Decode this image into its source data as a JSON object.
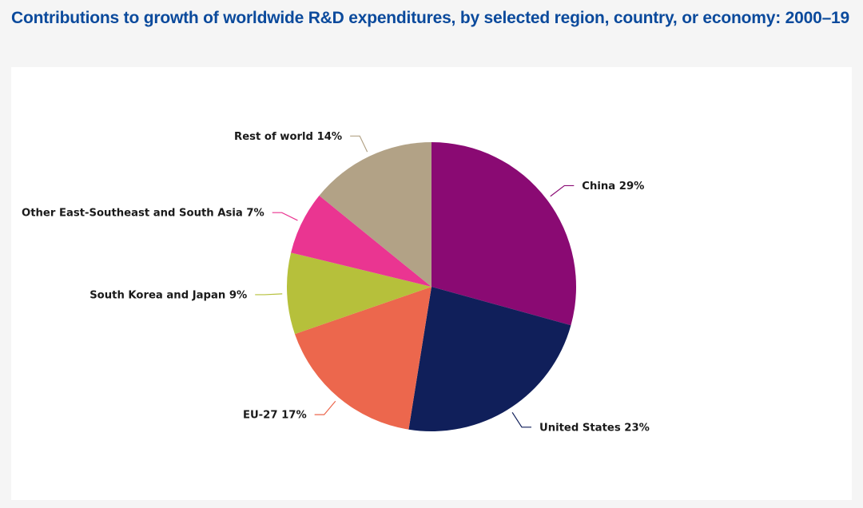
{
  "title": "Contributions to growth of worldwide R&D expenditures, by selected region, country, or economy: 2000–19",
  "chart_data": {
    "type": "pie",
    "title": "Contributions to growth of worldwide R&D expenditures, by selected region, country, or economy: 2000–19",
    "unit": "%",
    "slices": [
      {
        "name": "China",
        "value": 29,
        "label": "China 29%",
        "color": "#8a0a73"
      },
      {
        "name": "United States",
        "value": 23,
        "label": "United States 23%",
        "color": "#101f5a"
      },
      {
        "name": "EU-27",
        "value": 17,
        "label": "EU-27 17%",
        "color": "#ec674d"
      },
      {
        "name": "South Korea and Japan",
        "value": 9,
        "label": "South Korea and Japan 9%",
        "color": "#b6c03b"
      },
      {
        "name": "Other East-Southeast and South Asia",
        "value": 7,
        "label": "Other East-Southeast and South Asia 7%",
        "color": "#ea3591"
      },
      {
        "name": "Rest of world",
        "value": 14,
        "label": "Rest of world 14%",
        "color": "#b2a286"
      }
    ]
  }
}
